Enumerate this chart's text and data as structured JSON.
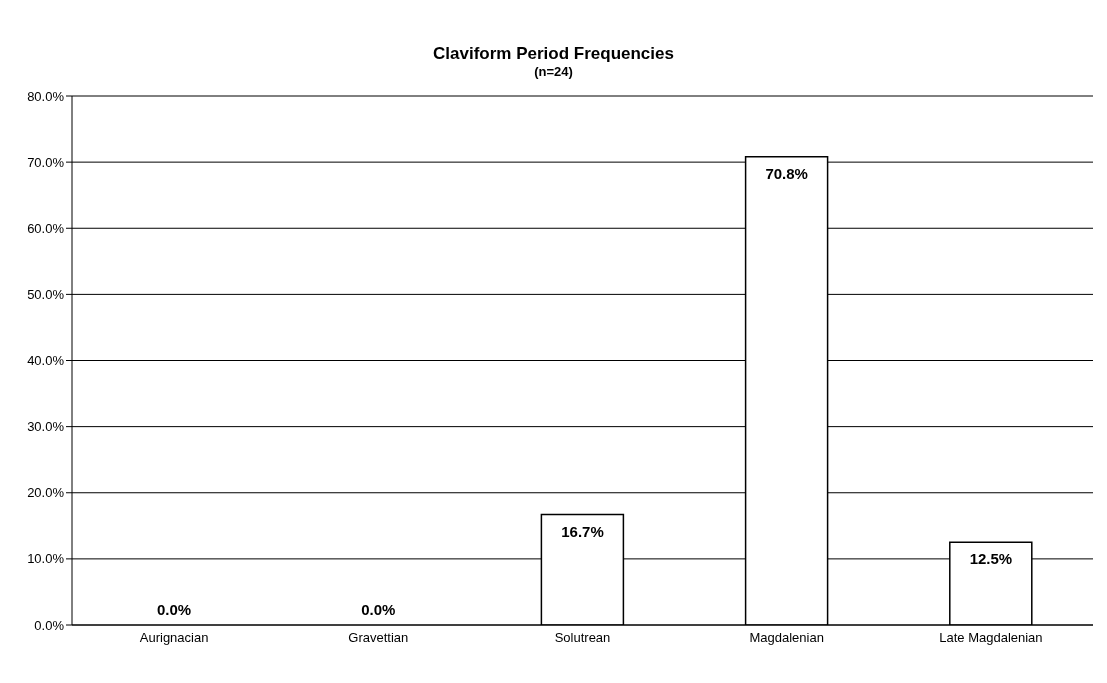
{
  "chart_data": {
    "type": "bar",
    "title": "Claviform Period Frequencies",
    "subtitle": "(n=24)",
    "categories": [
      "Aurignacian",
      "Gravettian",
      "Solutrean",
      "Magdalenian",
      "Late Magdalenian"
    ],
    "values": [
      0,
      0,
      16.7,
      70.8,
      12.5
    ],
    "value_labels": [
      "0.0%",
      "0.0%",
      "16.7%",
      "70.8%",
      "12.5%"
    ],
    "color": "#ffffff",
    "ylim": [
      0,
      80
    ],
    "yticks": [
      {
        "value": 0,
        "label": "0.0%"
      },
      {
        "value": 10,
        "label": "10.0%"
      },
      {
        "value": 20,
        "label": "20.0%"
      },
      {
        "value": 30,
        "label": "30.0%"
      },
      {
        "value": 40,
        "label": "40.0%"
      },
      {
        "value": 50,
        "label": "50.0%"
      },
      {
        "value": 60,
        "label": "60.0%"
      },
      {
        "value": 70,
        "label": "70.0%"
      },
      {
        "value": 80,
        "label": "80.0%"
      }
    ],
    "grid": "y"
  }
}
